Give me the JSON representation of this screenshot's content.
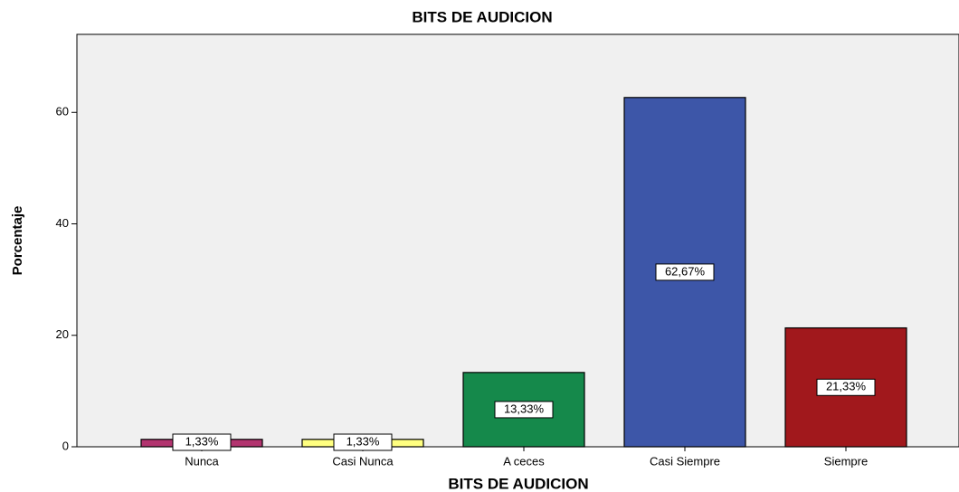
{
  "chart_data": {
    "type": "bar",
    "title": "BITS DE AUDICION",
    "x_label": "BITS DE AUDICION",
    "y_label": "Porcentaje",
    "categories": [
      "Nunca",
      "Casi Nunca",
      "A ceces",
      "Casi Siempre",
      "Siempre"
    ],
    "values": [
      1.33,
      1.33,
      13.33,
      62.67,
      21.33
    ],
    "value_labels": [
      "1,33%",
      "1,33%",
      "13,33%",
      "62,67%",
      "21,33%"
    ],
    "colors": [
      "#b2346f",
      "#ffff80",
      "#15894b",
      "#3d56a8",
      "#a1181c"
    ],
    "ylim": [
      0,
      74
    ],
    "yticks": [
      0,
      20,
      40,
      60
    ],
    "grid": false
  }
}
